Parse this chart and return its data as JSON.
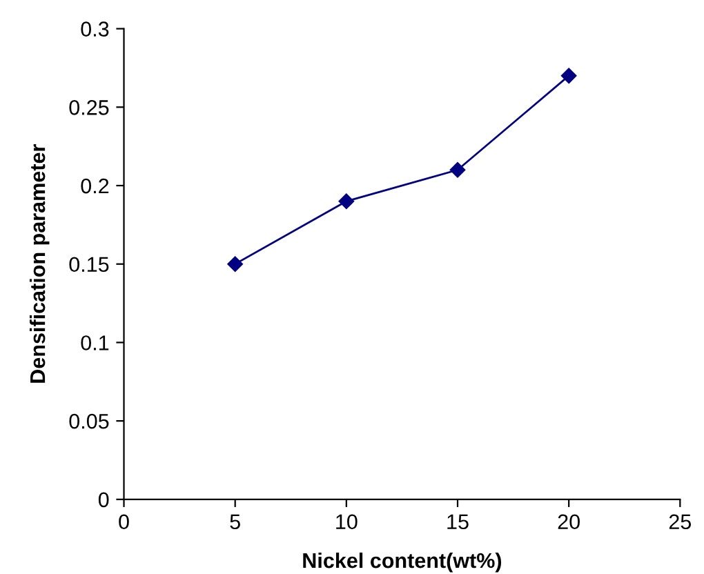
{
  "chart_data": {
    "type": "line",
    "xlabel": "Nickel content(wt%)",
    "ylabel": "Densification parameter",
    "x": [
      5,
      10,
      15,
      20
    ],
    "series": [
      {
        "color": "#000080",
        "values": [
          0.15,
          0.19,
          0.21,
          0.27
        ]
      }
    ],
    "xlim": [
      0,
      25
    ],
    "xticks": [
      0,
      5,
      10,
      15,
      20,
      25
    ],
    "ylim": [
      0,
      0.3
    ],
    "yticks": [
      0,
      0.05,
      0.1,
      0.15,
      0.2,
      0.25,
      0.3
    ],
    "marker": "diamond",
    "line_style": "solid",
    "grid": false
  }
}
